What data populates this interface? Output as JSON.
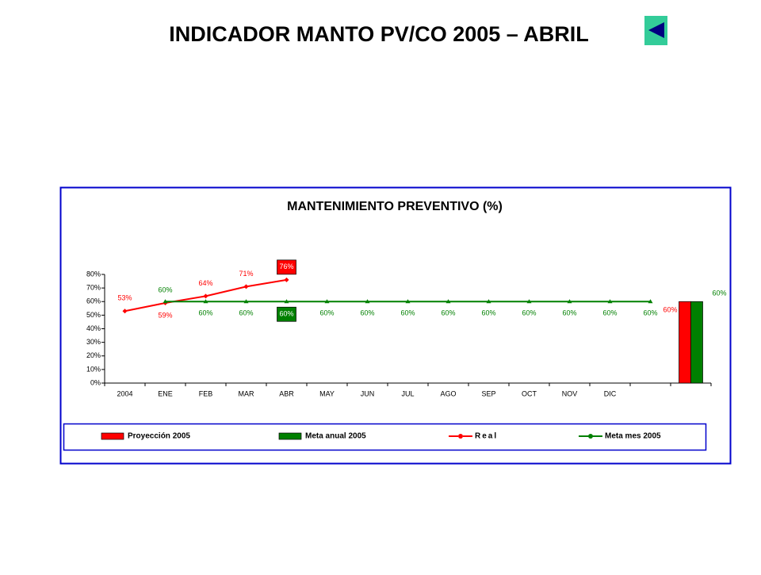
{
  "page_title": "INDICADOR MANTO  PV/CO 2005 – ABRIL",
  "chart_data": {
    "type": "combo",
    "title": "MANTENIMIENTO PREVENTIVO (%)",
    "categories": [
      "2004",
      "ENE",
      "FEB",
      "MAR",
      "ABR",
      "MAY",
      "JUN",
      "JUL",
      "AGO",
      "SEP",
      "OCT",
      "NOV",
      "DIC",
      null,
      null
    ],
    "ylim": [
      0,
      80
    ],
    "yticks": [
      {
        "value": 0,
        "label": "0%"
      },
      {
        "value": 10,
        "label": "10%"
      },
      {
        "value": 20,
        "label": "20%"
      },
      {
        "value": 30,
        "label": "30%"
      },
      {
        "value": 40,
        "label": "40%"
      },
      {
        "value": 50,
        "label": "50%"
      },
      {
        "value": 60,
        "label": "60%"
      },
      {
        "value": 70,
        "label": "70%"
      },
      {
        "value": 80,
        "label": "80%"
      }
    ],
    "legend": "bottom",
    "series": [
      {
        "name": "Proyección 2005",
        "type": "bar",
        "color": "#ff0000",
        "values": [
          null,
          null,
          null,
          null,
          null,
          null,
          null,
          null,
          null,
          null,
          null,
          null,
          null,
          null,
          60
        ],
        "value_labels": [
          null,
          null,
          null,
          null,
          null,
          null,
          null,
          null,
          null,
          null,
          null,
          null,
          null,
          null,
          "60%"
        ]
      },
      {
        "name": "Meta anual 2005",
        "type": "bar",
        "color": "#008000",
        "values": [
          null,
          null,
          null,
          null,
          null,
          null,
          null,
          null,
          null,
          null,
          null,
          null,
          null,
          null,
          60
        ],
        "value_labels": [
          null,
          null,
          null,
          null,
          null,
          null,
          null,
          null,
          null,
          null,
          null,
          null,
          null,
          null,
          "60%"
        ]
      },
      {
        "name": "Real",
        "type": "line",
        "color": "#ff0000",
        "marker": "diamond",
        "values": [
          53,
          59,
          64,
          71,
          76,
          null,
          null,
          null,
          null,
          null,
          null,
          null,
          null,
          null,
          null
        ],
        "value_labels": [
          "53%",
          "59%",
          "64%",
          "71%",
          "76%",
          null,
          null,
          null,
          null,
          null,
          null,
          null,
          null,
          null,
          null
        ]
      },
      {
        "name": "Meta mes 2005",
        "type": "line",
        "color": "#008000",
        "marker": "triangle",
        "values": [
          null,
          60,
          60,
          60,
          60,
          60,
          60,
          60,
          60,
          60,
          60,
          60,
          60,
          60,
          null
        ],
        "value_labels": [
          null,
          "60%",
          "60%",
          "60%",
          "60%",
          "60%",
          "60%",
          "60%",
          "60%",
          "60%",
          "60%",
          "60%",
          "60%",
          "60%",
          null
        ]
      }
    ]
  }
}
